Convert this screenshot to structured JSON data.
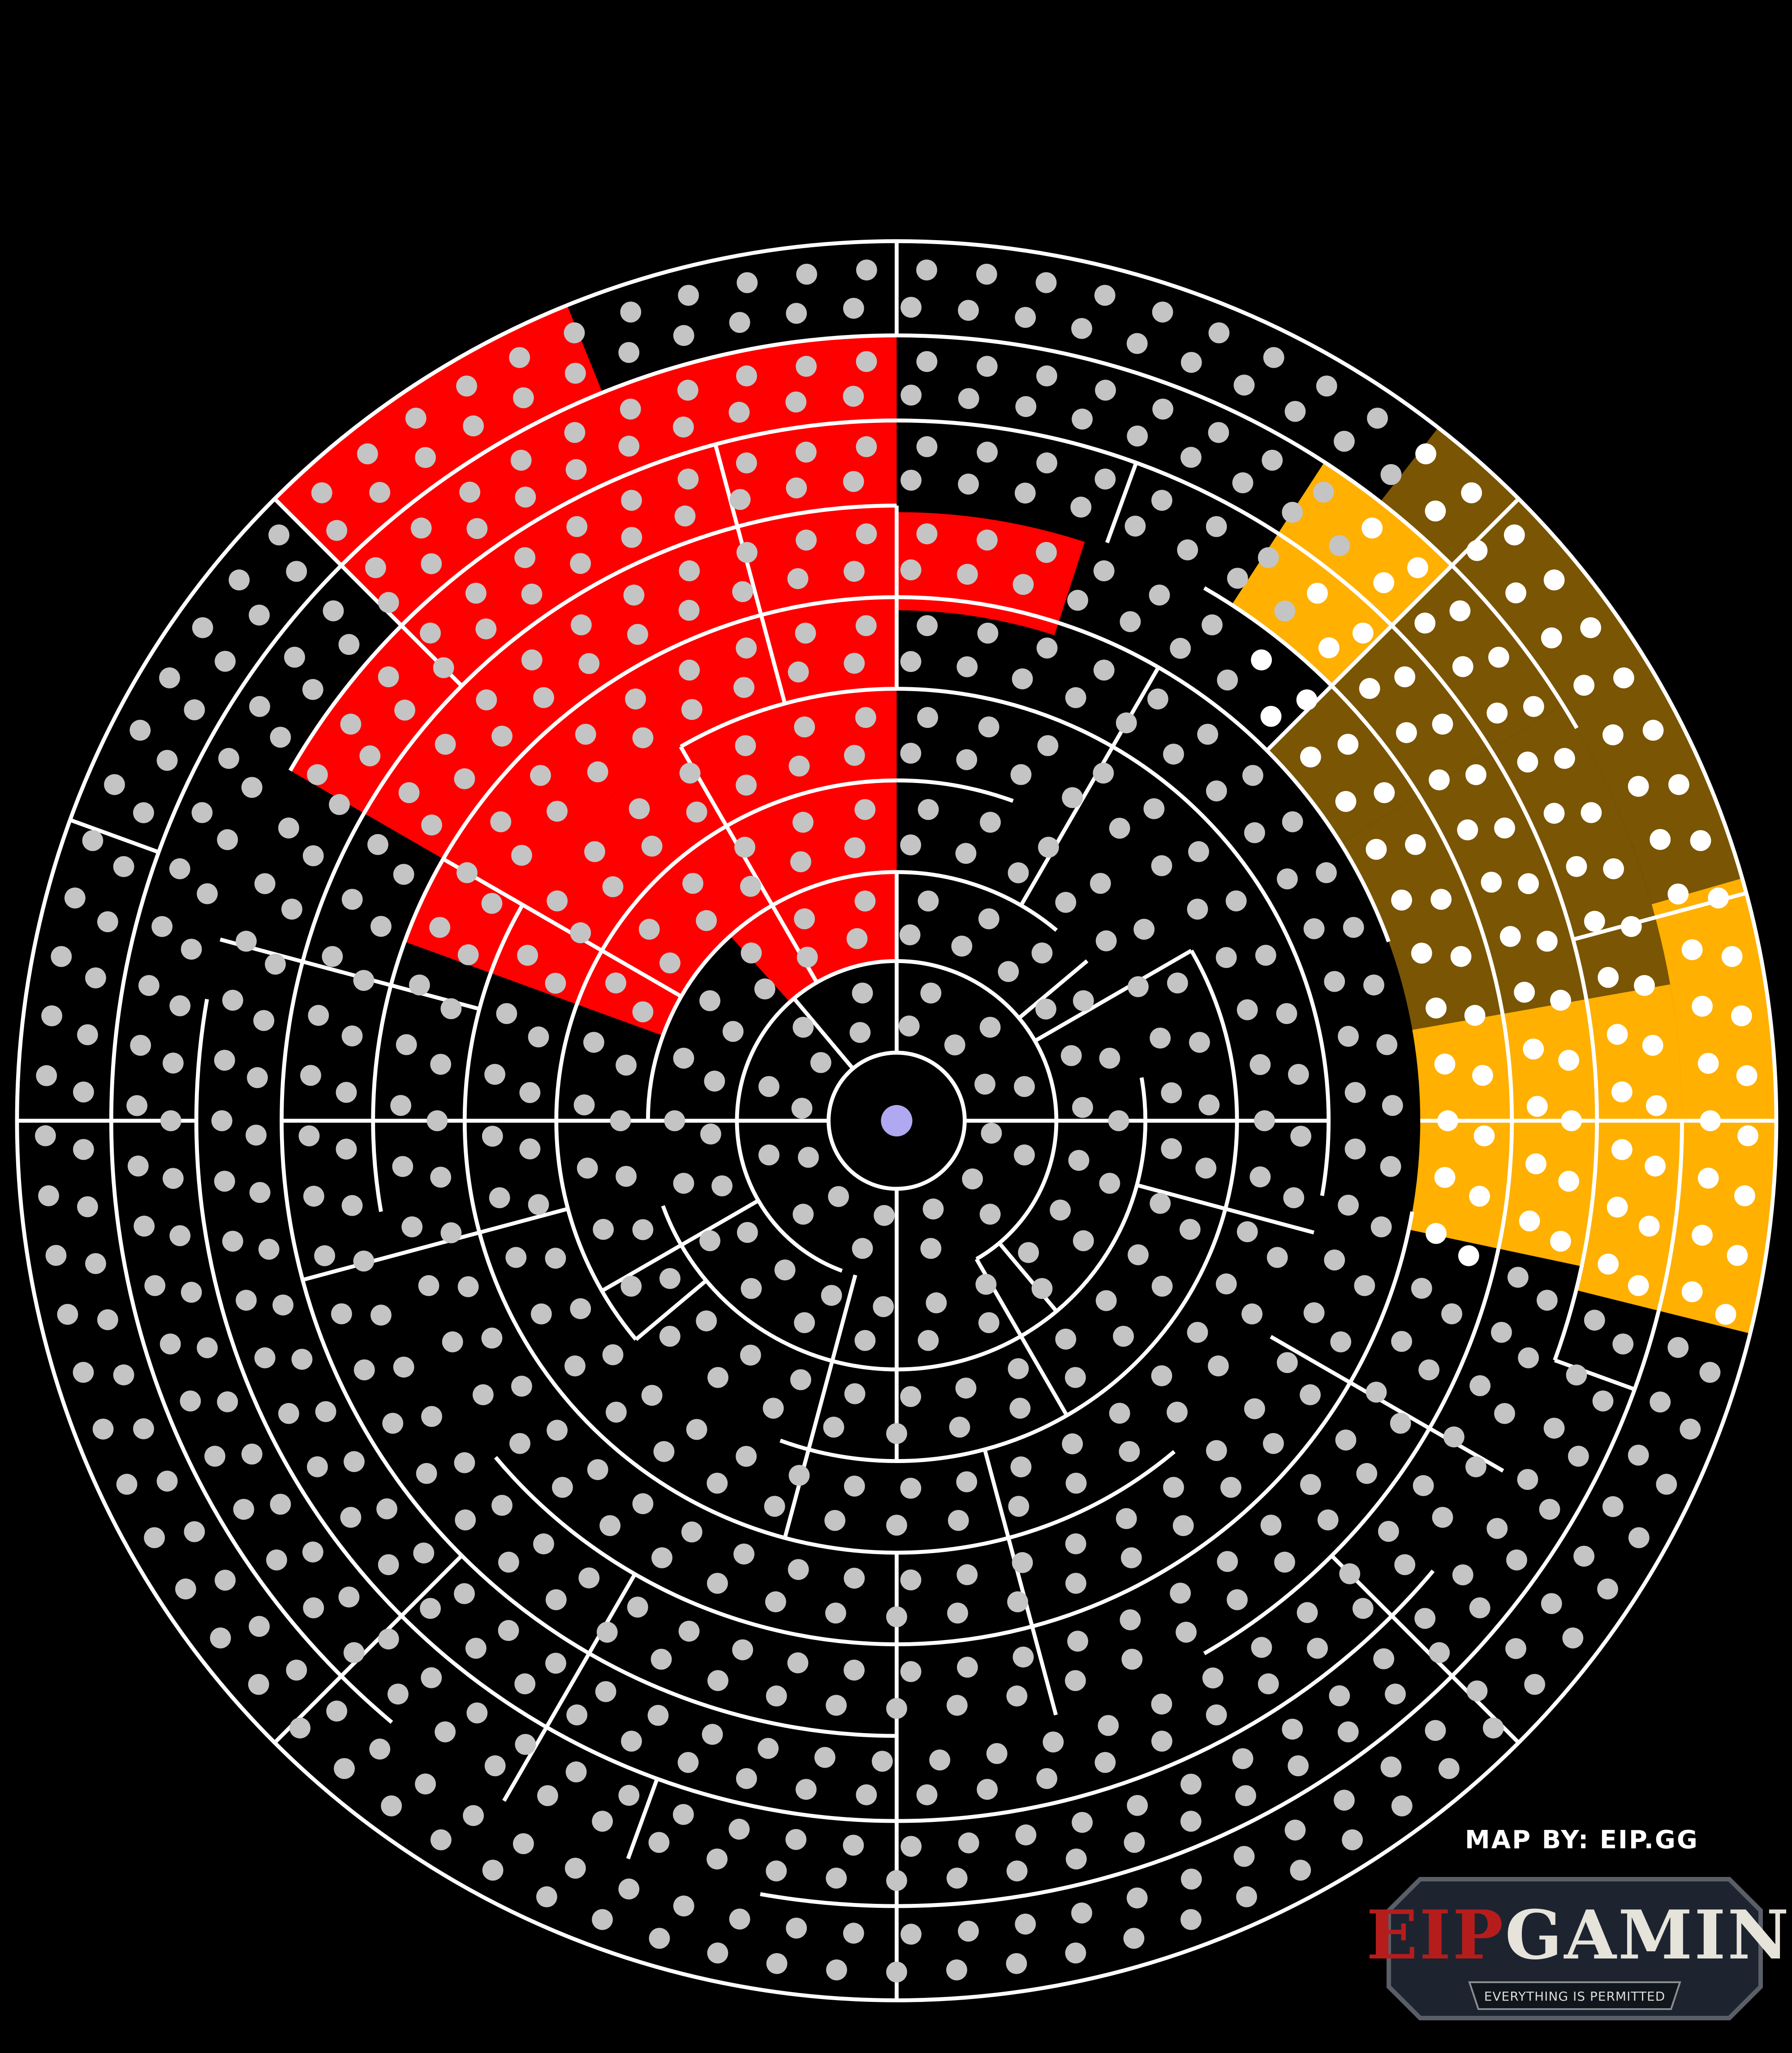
{
  "credit": "MAP BY: EIP.GG",
  "logo": {
    "eip": "EIP",
    "gaming": "GAMING",
    "tagline": "EVERYTHING IS PERMITTED"
  },
  "colors": {
    "background": "#000000",
    "walls": "#ffffff",
    "dot": "#c4c4c4",
    "highlight_dot": "#ffffff",
    "center": "#b0a8f0",
    "red": "#ff0000",
    "dark_gold": "#7a5504",
    "gold": "#ffb000"
  },
  "icons": [
    "center-marker-icon",
    "eip-gaming-logo"
  ]
}
